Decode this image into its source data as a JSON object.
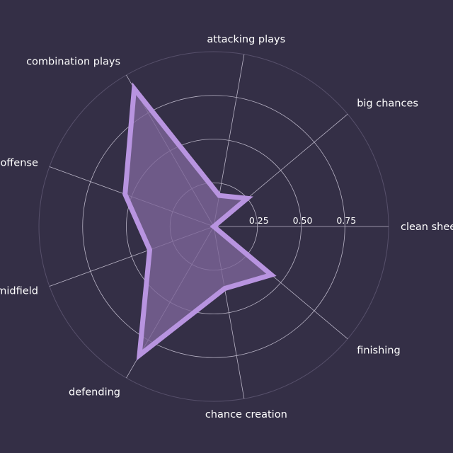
{
  "chart_data": {
    "type": "radar",
    "categories": [
      "clean sheets",
      "big chances",
      "attacking plays",
      "combination plays",
      "offense",
      "midfield",
      "defending",
      "chance creation",
      "finishing"
    ],
    "values": [
      0.0,
      0.25,
      0.18,
      0.91,
      0.54,
      0.39,
      0.85,
      0.36,
      0.43
    ],
    "rlim": [
      0,
      1
    ],
    "rticks": [
      0.25,
      0.5,
      0.75
    ],
    "rtick_labels": [
      "0.25",
      "0.50",
      "0.75"
    ],
    "grid": true,
    "colors": {
      "background": "#342f46",
      "fill": "#7d6599",
      "line": "#b894e0",
      "grid": "#b9b4c6",
      "outer_ring": "#57506b",
      "text": "#ffffff"
    }
  }
}
